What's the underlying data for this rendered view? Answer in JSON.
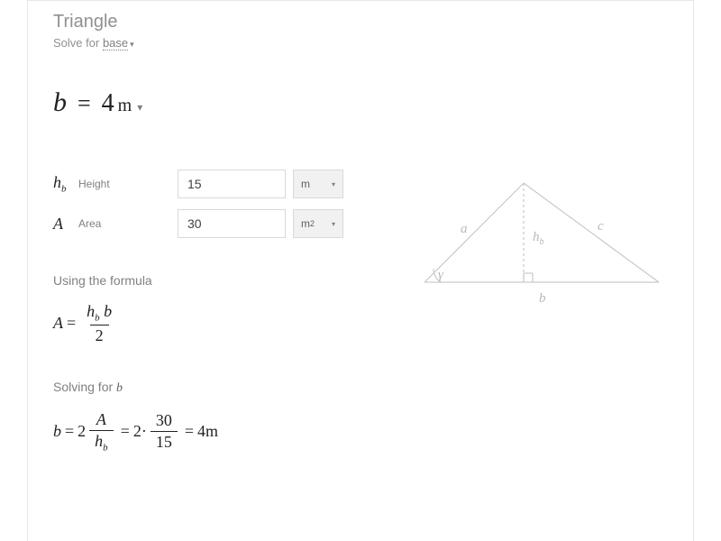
{
  "title": "Triangle",
  "solvefor_prefix": "Solve for",
  "solvefor_var": "base",
  "result": {
    "lhs": "b",
    "value": "4",
    "unit": "m"
  },
  "inputs": [
    {
      "sym_html": "h_b",
      "label": "Height",
      "value": "15",
      "unit": "m"
    },
    {
      "sym_html": "A",
      "label": "Area",
      "value": "30",
      "unit": "m²"
    }
  ],
  "using_label": "Using the formula",
  "formula": {
    "lhs": "A",
    "num_left": "h",
    "num_left_sub": "b",
    "num_right": "b",
    "den": "2"
  },
  "solving_label_prefix": "Solving for",
  "solving_var": "b",
  "step": {
    "lhs": "b",
    "two": "2",
    "A": "A",
    "h": "h",
    "h_sub": "b",
    "n30": "30",
    "n15": "15",
    "rhs_val": "4",
    "rhs_unit": "m"
  },
  "diagram": {
    "stroke": "#c9c9c9",
    "text": "#b8b8b8",
    "a": "a",
    "b": "b",
    "c": "c",
    "h": "h",
    "h_sub": "b",
    "gamma": "γ"
  }
}
